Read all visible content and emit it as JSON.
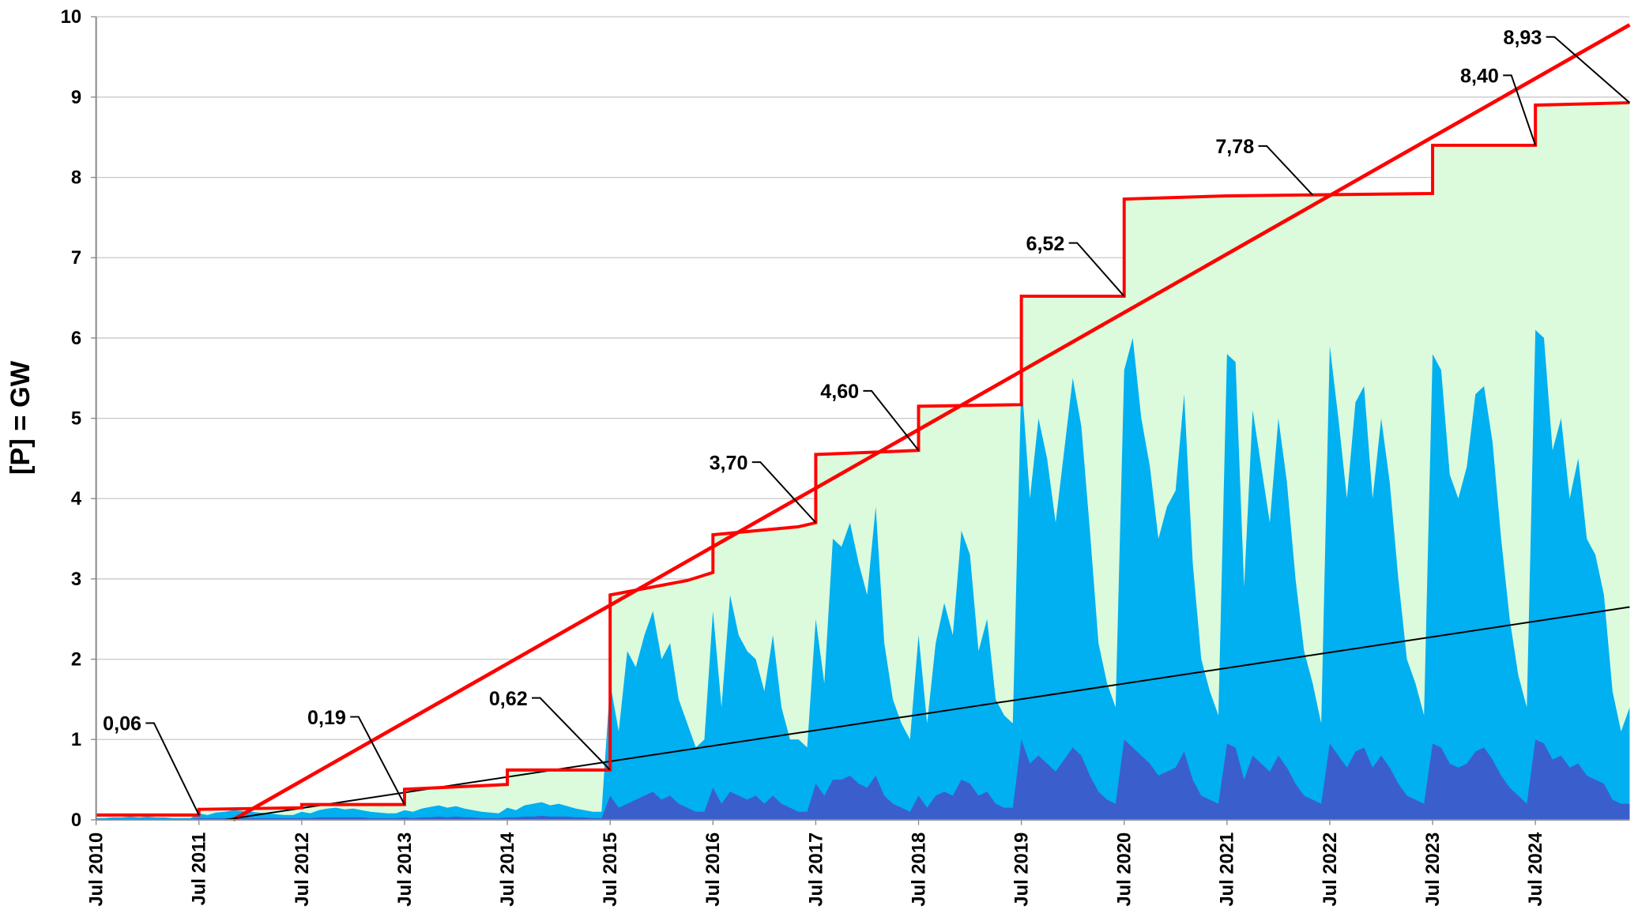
{
  "chart_data": {
    "type": "line",
    "ylabel": "[P] = GW",
    "xlim": [
      "2010-07",
      "2025-06"
    ],
    "ylim": [
      0,
      10
    ],
    "yticks": [
      0,
      1,
      2,
      3,
      4,
      5,
      6,
      7,
      8,
      9,
      10
    ],
    "grid": true,
    "xticks": [
      {
        "value": "2010-07",
        "label": "Jul 2010"
      },
      {
        "value": "2011-07",
        "label": "Jul 2011"
      },
      {
        "value": "2012-07",
        "label": "Jul 2012"
      },
      {
        "value": "2013-07",
        "label": "Jul 2013"
      },
      {
        "value": "2014-07",
        "label": "Jul 2014"
      },
      {
        "value": "2015-07",
        "label": "Jul 2015"
      },
      {
        "value": "2016-07",
        "label": "Jul 2016"
      },
      {
        "value": "2017-07",
        "label": "Jul 2017"
      },
      {
        "value": "2018-07",
        "label": "Jul 2018"
      },
      {
        "value": "2019-07",
        "label": "Jul 2019"
      },
      {
        "value": "2020-07",
        "label": "Jul 2020"
      },
      {
        "value": "2021-07",
        "label": "Jul 2021"
      },
      {
        "value": "2022-07",
        "label": "Jul 2022"
      },
      {
        "value": "2023-07",
        "label": "Jul 2023"
      },
      {
        "value": "2024-07",
        "label": "Jul 2024"
      }
    ],
    "generation": [
      {
        "color": "#00b0f0",
        "start": "2010-07",
        "values": [
          0.02,
          0.02,
          0.03,
          0.03,
          0.04,
          0.03,
          0.04,
          0.03,
          0.03,
          0.02,
          0.02,
          0.02,
          0.08,
          0.06,
          0.09,
          0.1,
          0.12,
          0.11,
          0.1,
          0.09,
          0.08,
          0.07,
          0.06,
          0.06,
          0.1,
          0.08,
          0.12,
          0.14,
          0.15,
          0.13,
          0.14,
          0.12,
          0.1,
          0.09,
          0.08,
          0.08,
          0.12,
          0.1,
          0.14,
          0.16,
          0.18,
          0.15,
          0.17,
          0.14,
          0.12,
          0.1,
          0.09,
          0.08,
          0.15,
          0.12,
          0.18,
          0.2,
          0.22,
          0.18,
          0.2,
          0.17,
          0.14,
          0.12,
          0.1,
          0.1,
          1.7,
          1.1,
          2.1,
          1.9,
          2.3,
          2.6,
          2.0,
          2.2,
          1.5,
          1.2,
          0.9,
          1.0,
          2.6,
          1.4,
          2.8,
          2.3,
          2.1,
          2.0,
          1.6,
          2.3,
          1.4,
          1.0,
          1.0,
          0.9,
          2.5,
          1.7,
          3.5,
          3.4,
          3.7,
          3.2,
          2.8,
          3.9,
          2.2,
          1.5,
          1.2,
          1.0,
          2.3,
          1.2,
          2.2,
          2.7,
          2.3,
          3.6,
          3.3,
          2.1,
          2.5,
          1.5,
          1.3,
          1.2,
          5.5,
          4.0,
          5.0,
          4.5,
          3.7,
          4.6,
          5.5,
          4.9,
          3.6,
          2.2,
          1.7,
          1.4,
          5.6,
          6.0,
          5.0,
          4.4,
          3.5,
          3.9,
          4.1,
          5.3,
          3.2,
          2.0,
          1.6,
          1.3,
          5.8,
          5.7,
          2.9,
          5.1,
          4.4,
          3.7,
          5.0,
          4.2,
          3.0,
          2.1,
          1.7,
          1.2,
          5.9,
          5.0,
          4.0,
          5.2,
          5.4,
          4.0,
          5.0,
          4.2,
          3.0,
          2.0,
          1.7,
          1.3,
          5.8,
          5.6,
          4.3,
          4.0,
          4.4,
          5.3,
          5.4,
          4.7,
          3.5,
          2.5,
          1.8,
          1.4,
          6.1,
          6.0,
          4.6,
          5.0,
          4.0,
          4.5,
          3.5,
          3.3,
          2.8,
          1.6,
          1.1,
          1.4
        ]
      },
      {
        "color": "#3a5fcd",
        "start": "2010-07",
        "values": [
          0.01,
          0.01,
          0.01,
          0.01,
          0.01,
          0.01,
          0.01,
          0.01,
          0.01,
          0.01,
          0.01,
          0.01,
          0.02,
          0.02,
          0.02,
          0.02,
          0.02,
          0.02,
          0.02,
          0.02,
          0.02,
          0.02,
          0.02,
          0.02,
          0.02,
          0.02,
          0.03,
          0.03,
          0.03,
          0.03,
          0.03,
          0.03,
          0.02,
          0.02,
          0.02,
          0.02,
          0.03,
          0.02,
          0.03,
          0.03,
          0.04,
          0.03,
          0.04,
          0.03,
          0.03,
          0.02,
          0.02,
          0.02,
          0.03,
          0.03,
          0.04,
          0.04,
          0.05,
          0.04,
          0.04,
          0.04,
          0.03,
          0.03,
          0.02,
          0.02,
          0.3,
          0.15,
          0.2,
          0.25,
          0.3,
          0.35,
          0.25,
          0.3,
          0.2,
          0.15,
          0.1,
          0.1,
          0.4,
          0.2,
          0.35,
          0.3,
          0.25,
          0.3,
          0.2,
          0.3,
          0.2,
          0.15,
          0.1,
          0.1,
          0.45,
          0.3,
          0.5,
          0.5,
          0.55,
          0.45,
          0.4,
          0.55,
          0.3,
          0.2,
          0.15,
          0.1,
          0.3,
          0.15,
          0.3,
          0.35,
          0.3,
          0.5,
          0.45,
          0.3,
          0.35,
          0.2,
          0.15,
          0.15,
          1.0,
          0.7,
          0.8,
          0.7,
          0.6,
          0.75,
          0.9,
          0.8,
          0.55,
          0.35,
          0.25,
          0.2,
          1.0,
          0.9,
          0.8,
          0.7,
          0.55,
          0.6,
          0.65,
          0.85,
          0.5,
          0.3,
          0.25,
          0.2,
          0.95,
          0.9,
          0.5,
          0.8,
          0.7,
          0.6,
          0.8,
          0.65,
          0.45,
          0.3,
          0.25,
          0.2,
          0.95,
          0.8,
          0.65,
          0.85,
          0.9,
          0.65,
          0.8,
          0.65,
          0.45,
          0.3,
          0.25,
          0.2,
          0.95,
          0.9,
          0.7,
          0.65,
          0.7,
          0.85,
          0.9,
          0.75,
          0.55,
          0.4,
          0.3,
          0.2,
          1.0,
          0.95,
          0.75,
          0.8,
          0.65,
          0.7,
          0.55,
          0.5,
          0.45,
          0.25,
          0.2,
          0.2
        ]
      }
    ],
    "capacity": {
      "color": "#ff0000",
      "fill": "#dcfadc",
      "x": [
        "2010-07",
        "2011-07",
        "2011-07",
        "2012-07",
        "2012-07",
        "2013-07",
        "2013-07",
        "2014-07",
        "2014-07",
        "2015-07",
        "2015-07",
        "2016-04",
        "2016-07",
        "2016-07",
        "2017-05",
        "2017-07",
        "2017-07",
        "2018-07",
        "2018-07",
        "2019-07",
        "2019-07",
        "2020-07",
        "2020-07",
        "2021-07",
        "2023-07",
        "2023-07",
        "2024-07",
        "2024-07",
        "2025-06"
      ],
      "values": [
        0.06,
        0.06,
        0.13,
        0.15,
        0.19,
        0.19,
        0.38,
        0.44,
        0.62,
        0.62,
        2.8,
        2.98,
        3.08,
        3.55,
        3.65,
        3.7,
        4.55,
        4.6,
        5.15,
        5.17,
        6.52,
        6.52,
        7.73,
        7.77,
        7.8,
        8.4,
        8.4,
        8.9,
        8.93
      ]
    },
    "trends": [
      {
        "color": "#ff0000",
        "x": [
          "2011-11",
          "2025-06"
        ],
        "values": [
          0,
          9.9
        ]
      },
      {
        "color": "#000000",
        "x": [
          "2011-10",
          "2025-06"
        ],
        "values": [
          0,
          2.65
        ]
      }
    ],
    "annotations": [
      {
        "label": "0,06",
        "x": "2011-07",
        "y": 0.06
      },
      {
        "label": "0,19",
        "x": "2013-07",
        "y": 0.19
      },
      {
        "label": "0,62",
        "x": "2015-07",
        "y": 0.62
      },
      {
        "label": "3,70",
        "x": "2017-07",
        "y": 3.7
      },
      {
        "label": "4,60",
        "x": "2018-07",
        "y": 4.6
      },
      {
        "label": "6,52",
        "x": "2020-07",
        "y": 6.52
      },
      {
        "label": "7,78",
        "x": "2022-05",
        "y": 7.78
      },
      {
        "label": "8,40",
        "x": "2024-07",
        "y": 8.4
      },
      {
        "label": "8,93",
        "x": "2025-06",
        "y": 8.93
      }
    ]
  }
}
